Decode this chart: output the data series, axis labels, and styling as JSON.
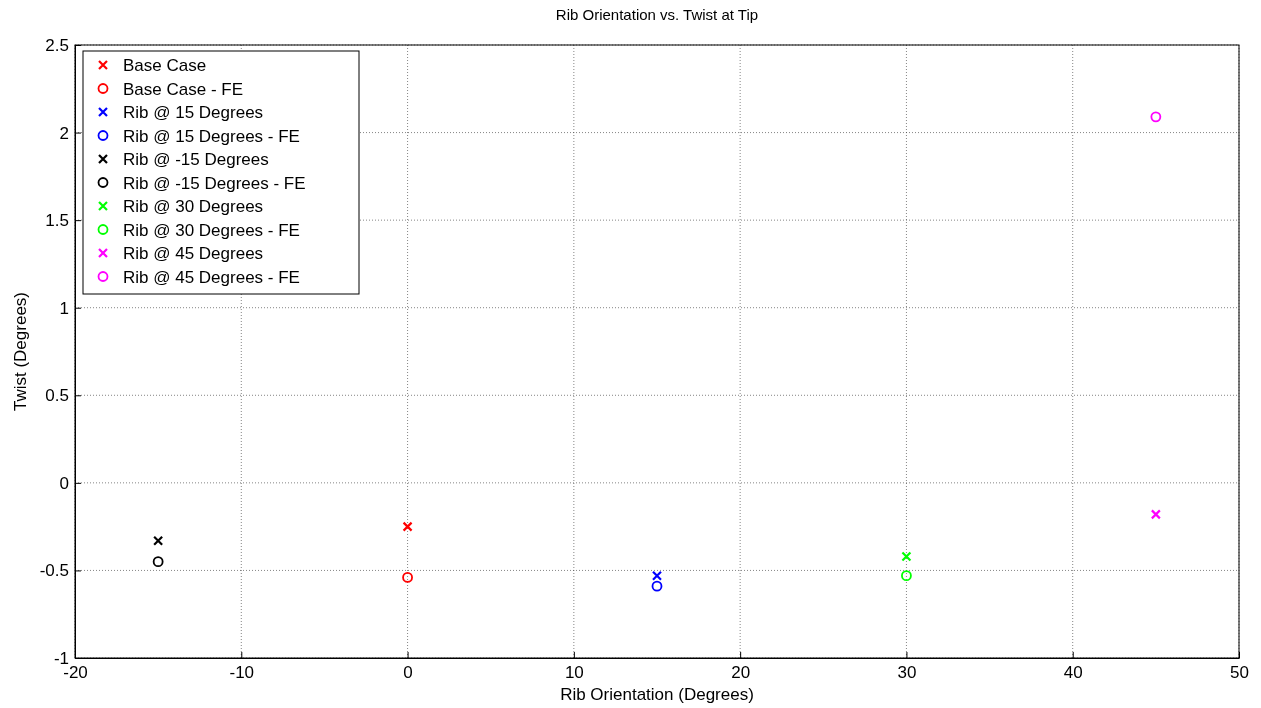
{
  "chart_data": {
    "type": "scatter",
    "title": "Rib Orientation vs. Twist at Tip",
    "xlabel": "Rib Orientation (Degrees)",
    "ylabel": "Twist (Degrees)",
    "xlim": [
      -20,
      50
    ],
    "xticks": [
      -20,
      -10,
      0,
      10,
      20,
      30,
      40,
      50
    ],
    "ylim": [
      -1,
      2.5
    ],
    "yticks": [
      -1,
      -0.5,
      0,
      0.5,
      1,
      1.5,
      2,
      2.5
    ],
    "grid": true,
    "legend": "top left",
    "series": [
      {
        "name": "Base Case",
        "color": "#ff0000",
        "marker": "cross",
        "x": [
          0
        ],
        "values": [
          -0.25
        ]
      },
      {
        "name": "Base Case - FE",
        "color": "#ff0000",
        "marker": "circle",
        "x": [
          0
        ],
        "values": [
          -0.54
        ]
      },
      {
        "name": "Rib @ 15 Degrees",
        "color": "#0000ff",
        "marker": "cross",
        "x": [
          15
        ],
        "values": [
          -0.53
        ]
      },
      {
        "name": "Rib @ 15 Degrees - FE",
        "color": "#0000ff",
        "marker": "circle",
        "x": [
          15
        ],
        "values": [
          -0.59
        ]
      },
      {
        "name": "Rib @ -15 Degrees",
        "color": "#000000",
        "marker": "cross",
        "x": [
          -15
        ],
        "values": [
          -0.33
        ]
      },
      {
        "name": "Rib @ -15 Degrees - FE",
        "color": "#000000",
        "marker": "circle",
        "x": [
          -15
        ],
        "values": [
          -0.45
        ]
      },
      {
        "name": "Rib @ 30 Degrees",
        "color": "#00ff00",
        "marker": "cross",
        "x": [
          30
        ],
        "values": [
          -0.42
        ]
      },
      {
        "name": "Rib @ 30 Degrees - FE",
        "color": "#00ff00",
        "marker": "circle",
        "x": [
          30
        ],
        "values": [
          -0.53
        ]
      },
      {
        "name": "Rib @ 45 Degrees",
        "color": "#ff00ff",
        "marker": "cross",
        "x": [
          45
        ],
        "values": [
          -0.18
        ]
      },
      {
        "name": "Rib @ 45 Degrees - FE",
        "color": "#ff00ff",
        "marker": "circle",
        "x": [
          45
        ],
        "values": [
          2.09
        ]
      }
    ]
  }
}
